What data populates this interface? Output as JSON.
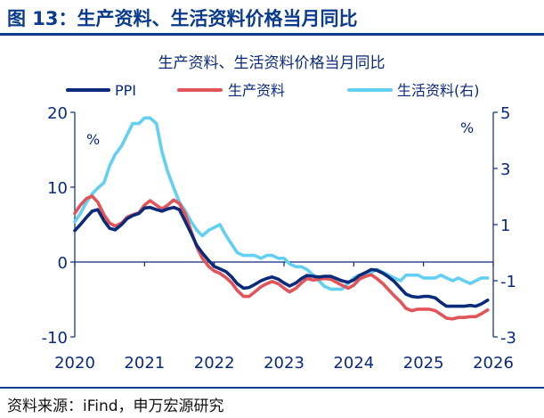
{
  "figure": {
    "title": "图 13：生产资料、生活资料价格当月同比",
    "source": "资料来源：iFind，申万宏源研究"
  },
  "colors": {
    "title_blue": "#0a3b8c",
    "ppi": "#0a2a7a",
    "producer": "#e0545a",
    "consumer": "#63d0f2",
    "axis": "#0a2a7a"
  },
  "chart_data": {
    "type": "line",
    "title": "生产资料、生活资料价格当月同比",
    "xlabel": "",
    "ylabel_left": "%",
    "ylabel_right": "%",
    "ylim_left": [
      -10,
      20
    ],
    "ylim_right": [
      -3,
      5
    ],
    "x_ticks": [
      "2020",
      "2021",
      "2022",
      "2023",
      "2024",
      "2025",
      "2026"
    ],
    "y_ticks_left": [
      "20",
      "10",
      "0",
      "-10"
    ],
    "y_ticks_right": [
      "5",
      "3",
      "1",
      "-1",
      "-3"
    ],
    "legend_position": "top-left",
    "x_unit": "year",
    "series": [
      {
        "name": "PPI",
        "axis": "left",
        "x": [
          2020.0,
          2020.08,
          2020.17,
          2020.25,
          2020.33,
          2020.42,
          2020.5,
          2020.58,
          2020.67,
          2020.75,
          2020.83,
          2020.92,
          2021.0,
          2021.08,
          2021.17,
          2021.25,
          2021.33,
          2021.42,
          2021.5,
          2021.58,
          2021.67,
          2021.75,
          2021.83,
          2021.92,
          2022.0,
          2022.08,
          2022.17,
          2022.25,
          2022.33,
          2022.42,
          2022.5,
          2022.58,
          2022.67,
          2022.75,
          2022.83,
          2022.92,
          2023.0,
          2023.08,
          2023.17,
          2023.25,
          2023.33,
          2023.42,
          2023.5,
          2023.58,
          2023.67,
          2023.75,
          2023.83,
          2023.92,
          2024.0,
          2024.08,
          2024.17,
          2024.25,
          2024.33,
          2024.42,
          2024.5,
          2024.58,
          2024.67,
          2024.75,
          2024.83,
          2024.92,
          2025.0,
          2025.08,
          2025.17,
          2025.25,
          2025.33,
          2025.42,
          2025.5,
          2025.58,
          2025.67,
          2025.75,
          2025.83,
          2025.92
        ],
        "y": [
          4.2,
          5.0,
          6.0,
          6.8,
          7.0,
          5.5,
          4.5,
          4.3,
          5.0,
          5.8,
          6.2,
          6.5,
          7.2,
          7.3,
          7.0,
          6.8,
          7.1,
          7.3,
          7.0,
          5.5,
          3.8,
          2.2,
          1.2,
          0.2,
          -0.6,
          -0.9,
          -1.3,
          -2.0,
          -2.9,
          -3.5,
          -3.4,
          -3.0,
          -2.5,
          -2.2,
          -2.0,
          -2.3,
          -2.8,
          -3.2,
          -2.8,
          -2.2,
          -1.8,
          -1.9,
          -2.0,
          -1.9,
          -1.9,
          -2.2,
          -2.5,
          -2.7,
          -2.4,
          -1.8,
          -1.4,
          -1.0,
          -1.1,
          -1.5,
          -2.0,
          -2.6,
          -3.5,
          -4.3,
          -4.6,
          -4.7,
          -4.6,
          -4.6,
          -4.8,
          -5.4,
          -5.9,
          -5.9,
          -5.9,
          -5.9,
          -5.8,
          -5.9,
          -5.6,
          -5.1
        ]
      },
      {
        "name": "生产资料",
        "axis": "left",
        "x": [
          2020.0,
          2020.08,
          2020.17,
          2020.25,
          2020.33,
          2020.42,
          2020.5,
          2020.58,
          2020.67,
          2020.75,
          2020.83,
          2020.92,
          2021.0,
          2021.08,
          2021.17,
          2021.25,
          2021.33,
          2021.42,
          2021.5,
          2021.58,
          2021.67,
          2021.75,
          2021.83,
          2021.92,
          2022.0,
          2022.08,
          2022.17,
          2022.25,
          2022.33,
          2022.42,
          2022.5,
          2022.58,
          2022.67,
          2022.75,
          2022.83,
          2022.92,
          2023.0,
          2023.08,
          2023.17,
          2023.25,
          2023.33,
          2023.42,
          2023.5,
          2023.58,
          2023.67,
          2023.75,
          2023.83,
          2023.92,
          2024.0,
          2024.08,
          2024.17,
          2024.25,
          2024.33,
          2024.42,
          2024.5,
          2024.58,
          2024.67,
          2024.75,
          2024.83,
          2024.92,
          2025.0,
          2025.08,
          2025.17,
          2025.25,
          2025.33,
          2025.42,
          2025.5,
          2025.58,
          2025.67,
          2025.75,
          2025.83,
          2025.92
        ],
        "y": [
          6.5,
          7.6,
          8.5,
          8.8,
          8.0,
          6.3,
          5.2,
          4.8,
          5.2,
          6.0,
          6.3,
          6.6,
          7.6,
          8.2,
          7.6,
          7.1,
          7.6,
          8.3,
          7.8,
          6.5,
          4.1,
          2.0,
          0.5,
          -0.6,
          -1.2,
          -1.5,
          -2.1,
          -2.8,
          -3.8,
          -4.6,
          -4.6,
          -4.0,
          -3.3,
          -2.9,
          -2.6,
          -2.9,
          -3.5,
          -4.0,
          -3.5,
          -2.8,
          -2.2,
          -2.4,
          -2.3,
          -2.2,
          -2.3,
          -2.7,
          -3.1,
          -3.5,
          -3.1,
          -2.3,
          -1.9,
          -1.7,
          -2.2,
          -2.9,
          -3.7,
          -4.5,
          -5.3,
          -6.2,
          -6.5,
          -6.3,
          -6.3,
          -6.3,
          -6.5,
          -7.0,
          -7.5,
          -7.6,
          -7.4,
          -7.4,
          -7.3,
          -7.3,
          -6.9,
          -6.4
        ]
      },
      {
        "name": "生活资料(右)",
        "axis": "right",
        "x": [
          2020.0,
          2020.08,
          2020.17,
          2020.25,
          2020.33,
          2020.42,
          2020.5,
          2020.58,
          2020.67,
          2020.75,
          2020.83,
          2020.92,
          2021.0,
          2021.08,
          2021.17,
          2021.25,
          2021.33,
          2021.42,
          2021.5,
          2021.58,
          2021.67,
          2021.75,
          2021.83,
          2021.92,
          2022.0,
          2022.08,
          2022.17,
          2022.25,
          2022.33,
          2022.42,
          2022.5,
          2022.58,
          2022.67,
          2022.75,
          2022.83,
          2022.92,
          2023.0,
          2023.08,
          2023.17,
          2023.25,
          2023.33,
          2023.42,
          2023.5,
          2023.58,
          2023.67,
          2023.75,
          2023.83,
          2023.92,
          2024.0,
          2024.08,
          2024.17,
          2024.25,
          2024.33,
          2024.42,
          2024.5,
          2024.58,
          2024.67,
          2024.75,
          2024.83,
          2024.92,
          2025.0,
          2025.08,
          2025.17,
          2025.25,
          2025.33,
          2025.42,
          2025.5,
          2025.58,
          2025.67,
          2025.75,
          2025.83,
          2025.92
        ],
        "y": [
          1.1,
          1.4,
          1.8,
          2.1,
          2.3,
          2.5,
          3.1,
          3.5,
          3.8,
          4.2,
          4.6,
          4.6,
          4.8,
          4.8,
          4.6,
          3.6,
          2.9,
          2.3,
          1.8,
          1.5,
          1.1,
          0.8,
          0.6,
          0.8,
          0.9,
          1.0,
          0.6,
          0.3,
          0.0,
          -0.1,
          -0.1,
          -0.1,
          -0.2,
          -0.1,
          -0.1,
          -0.2,
          -0.2,
          -0.4,
          -0.5,
          -0.5,
          -0.6,
          -0.8,
          -1.0,
          -1.2,
          -1.3,
          -1.3,
          -1.3,
          -1.1,
          -0.9,
          -0.8,
          -0.8,
          -0.7,
          -0.6,
          -0.7,
          -0.8,
          -0.9,
          -1.0,
          -0.8,
          -0.8,
          -0.8,
          -0.9,
          -0.9,
          -0.9,
          -0.8,
          -0.9,
          -1.0,
          -0.9,
          -1.0,
          -1.1,
          -1.0,
          -0.9,
          -0.9
        ]
      }
    ]
  }
}
